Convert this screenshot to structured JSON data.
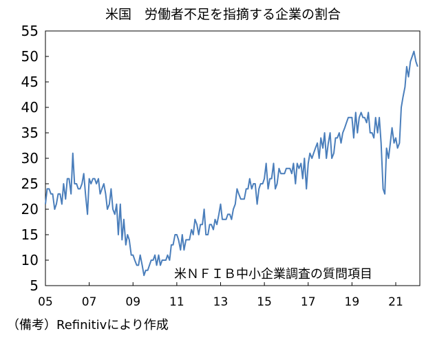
{
  "chart_data": {
    "type": "line",
    "title": "米国　労働者不足を指摘する企業の割合",
    "xlabel": "",
    "ylabel": "",
    "annotation": "米ＮＦＩＢ中小企業調査の質問項目",
    "source_note": "（備考）Refinitivにより作成",
    "ylim": [
      5,
      55
    ],
    "yticks": [
      5,
      10,
      15,
      20,
      25,
      30,
      35,
      40,
      45,
      50,
      55
    ],
    "xlim": [
      2005.0,
      2022.1
    ],
    "xticks": [
      {
        "x": 2005,
        "label": "05"
      },
      {
        "x": 2007,
        "label": "07"
      },
      {
        "x": 2009,
        "label": "09"
      },
      {
        "x": 2011,
        "label": "11"
      },
      {
        "x": 2013,
        "label": "13"
      },
      {
        "x": 2015,
        "label": "15"
      },
      {
        "x": 2017,
        "label": "17"
      },
      {
        "x": 2019,
        "label": "19"
      },
      {
        "x": 2021,
        "label": "21"
      }
    ],
    "grid": false,
    "line_color": "#4a7ebb",
    "series": [
      {
        "x": [
          2005.0,
          2005.08,
          2005.17,
          2005.25,
          2005.33,
          2005.42,
          2005.5,
          2005.58,
          2005.67,
          2005.75,
          2005.83,
          2005.92,
          2006.0,
          2006.08,
          2006.17,
          2006.25,
          2006.33,
          2006.42,
          2006.5,
          2006.58,
          2006.67,
          2006.75,
          2006.83,
          2006.92,
          2007.0,
          2007.08,
          2007.17,
          2007.25,
          2007.33,
          2007.42,
          2007.5,
          2007.58,
          2007.67,
          2007.75,
          2007.83,
          2007.92,
          2008.0,
          2008.08,
          2008.17,
          2008.25,
          2008.33,
          2008.42,
          2008.5,
          2008.58,
          2008.67,
          2008.75,
          2008.83,
          2008.92,
          2009.0,
          2009.08,
          2009.17,
          2009.25,
          2009.33,
          2009.42,
          2009.5,
          2009.58,
          2009.67,
          2009.75,
          2009.83,
          2009.92,
          2010.0,
          2010.08,
          2010.17,
          2010.25,
          2010.33,
          2010.42,
          2010.5,
          2010.58,
          2010.67,
          2010.75,
          2010.83,
          2010.92,
          2011.0,
          2011.08,
          2011.17,
          2011.25,
          2011.33,
          2011.42,
          2011.5,
          2011.58,
          2011.67,
          2011.75,
          2011.83,
          2011.92,
          2012.0,
          2012.08,
          2012.17,
          2012.25,
          2012.33,
          2012.42,
          2012.5,
          2012.58,
          2012.67,
          2012.75,
          2012.83,
          2012.92,
          2013.0,
          2013.08,
          2013.17,
          2013.25,
          2013.33,
          2013.42,
          2013.5,
          2013.58,
          2013.67,
          2013.75,
          2013.83,
          2013.92,
          2014.0,
          2014.08,
          2014.17,
          2014.25,
          2014.33,
          2014.42,
          2014.5,
          2014.58,
          2014.67,
          2014.75,
          2014.83,
          2014.92,
          2015.0,
          2015.08,
          2015.17,
          2015.25,
          2015.33,
          2015.42,
          2015.5,
          2015.58,
          2015.67,
          2015.75,
          2015.83,
          2015.92,
          2016.0,
          2016.08,
          2016.17,
          2016.25,
          2016.33,
          2016.42,
          2016.5,
          2016.58,
          2016.67,
          2016.75,
          2016.83,
          2016.92,
          2017.0,
          2017.08,
          2017.17,
          2017.25,
          2017.33,
          2017.42,
          2017.5,
          2017.58,
          2017.67,
          2017.75,
          2017.83,
          2017.92,
          2018.0,
          2018.08,
          2018.17,
          2018.25,
          2018.33,
          2018.42,
          2018.5,
          2018.58,
          2018.67,
          2018.75,
          2018.83,
          2018.92,
          2019.0,
          2019.08,
          2019.17,
          2019.25,
          2019.33,
          2019.42,
          2019.5,
          2019.58,
          2019.67,
          2019.75,
          2019.83,
          2019.92,
          2020.0,
          2020.08,
          2020.17,
          2020.25,
          2020.33,
          2020.42,
          2020.5,
          2020.58,
          2020.67,
          2020.75,
          2020.83,
          2020.92,
          2021.0,
          2021.08,
          2021.17,
          2021.25,
          2021.33,
          2021.42,
          2021.5,
          2021.58,
          2021.67,
          2021.75,
          2021.83,
          2021.92,
          2022.0
        ],
        "values": [
          21,
          24,
          24,
          23,
          23,
          20,
          21,
          23,
          23,
          21,
          25,
          22,
          26,
          26,
          23,
          31,
          25,
          25,
          24,
          24,
          25,
          27,
          23,
          19,
          26,
          25,
          26,
          26,
          25,
          26,
          23,
          24,
          25,
          23,
          20,
          21,
          24,
          20,
          19,
          21,
          15,
          21,
          14,
          18,
          13,
          15,
          14,
          11,
          11,
          10,
          9,
          9,
          11,
          9,
          7,
          8,
          8,
          9,
          10,
          10,
          11,
          9,
          11,
          9,
          10,
          10,
          10,
          11,
          10,
          13,
          13,
          15,
          15,
          14,
          12,
          15,
          12,
          14,
          14,
          14,
          16,
          15,
          18,
          17,
          15,
          17,
          17,
          20,
          15,
          15,
          17,
          17,
          16,
          18,
          17,
          19,
          21,
          18,
          18,
          18,
          19,
          19,
          18,
          20,
          21,
          24,
          23,
          22,
          22,
          22,
          24,
          24,
          26,
          24,
          25,
          25,
          21,
          24,
          25,
          25,
          26,
          29,
          24,
          26,
          26,
          29,
          24,
          25,
          28,
          27,
          27,
          27,
          28,
          28,
          28,
          27,
          29,
          25,
          29,
          28,
          29,
          26,
          30,
          24,
          29,
          31,
          30,
          31,
          32,
          33,
          30,
          34,
          32,
          35,
          30,
          33,
          35,
          30,
          31,
          34,
          34,
          35,
          33,
          35,
          36,
          37,
          38,
          38,
          38,
          34,
          39,
          35,
          38,
          39,
          38,
          38,
          37,
          39,
          35,
          35,
          34,
          38,
          35,
          38,
          33,
          24,
          23,
          32,
          30,
          33,
          36,
          33,
          34,
          32,
          33,
          40,
          42,
          44,
          48,
          46,
          49,
          50,
          51,
          49,
          48
        ]
      }
    ]
  }
}
